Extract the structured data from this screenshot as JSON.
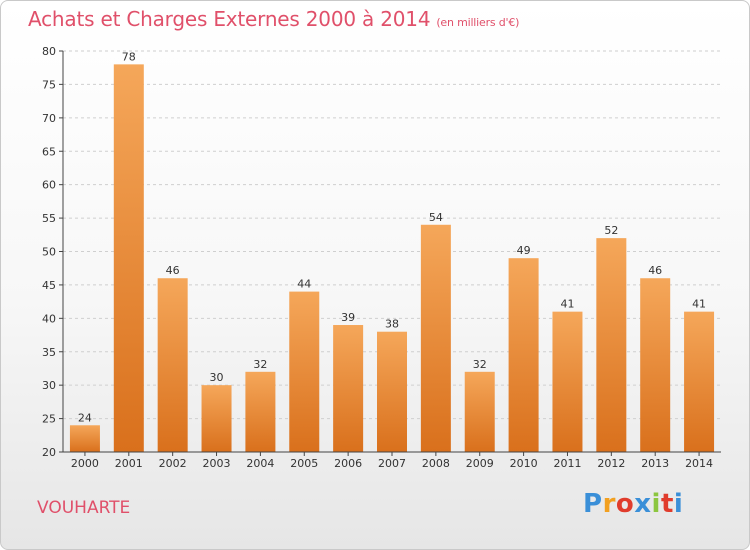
{
  "title": "Achats et Charges Externes 2000 à 2014",
  "subtitle": "(en milliers d'€)",
  "city": "VOUHARTE",
  "logo": {
    "letters": [
      "P",
      "r",
      "o",
      "x",
      "i",
      "t",
      "i"
    ],
    "colors": [
      "#3a8fd8",
      "#f2a020",
      "#e03c2c",
      "#3a8fd8",
      "#8cc63f",
      "#e03c2c",
      "#3a8fd8"
    ]
  },
  "colors": {
    "bar_top": "#f5a75a",
    "bar_bottom": "#d9701c",
    "grid": "#cfcfcf",
    "axis": "#444444",
    "title": "#e0506a"
  },
  "chart_data": {
    "type": "bar",
    "title": "Achats et Charges Externes 2000 à 2014",
    "subtitle": "(en milliers d'€)",
    "categories": [
      "2000",
      "2001",
      "2002",
      "2003",
      "2004",
      "2005",
      "2006",
      "2007",
      "2008",
      "2009",
      "2010",
      "2011",
      "2012",
      "2013",
      "2014"
    ],
    "values": [
      24,
      78,
      46,
      30,
      32,
      44,
      39,
      38,
      54,
      32,
      49,
      41,
      52,
      46,
      41
    ],
    "ylim": [
      20,
      80
    ],
    "yticks": [
      20,
      25,
      30,
      35,
      40,
      45,
      50,
      55,
      60,
      65,
      70,
      75,
      80
    ],
    "grid": true,
    "xlabel": "",
    "ylabel": ""
  }
}
